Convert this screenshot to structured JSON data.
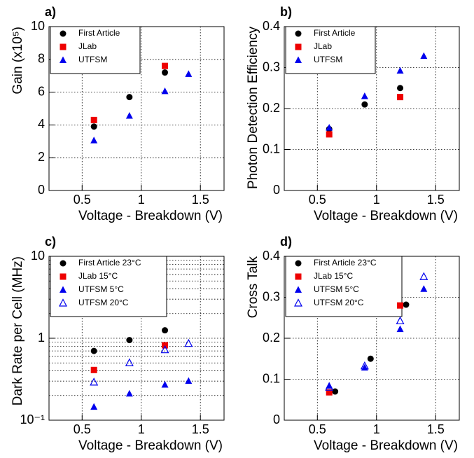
{
  "chart_data": [
    {
      "type": "scatter",
      "annotation": "a)",
      "xlabel": "Voltage - Breakdown (V)",
      "ylabel": "Gain (x10⁵)",
      "xlim": [
        0.22,
        1.7
      ],
      "xticks": [
        0.5,
        1,
        1.5
      ],
      "ylim": [
        0,
        10
      ],
      "yticks": [
        0,
        2,
        4,
        6,
        8,
        10
      ],
      "grid": true,
      "legend": "upper left",
      "series": [
        {
          "name": "First Article",
          "color": "#000000",
          "marker": "circle",
          "x": [
            0.6,
            0.9,
            1.2
          ],
          "values": [
            3.9,
            5.7,
            7.2
          ]
        },
        {
          "name": "JLab",
          "color": "#ee0000",
          "marker": "square",
          "x": [
            0.6,
            1.2
          ],
          "values": [
            4.3,
            7.6
          ]
        },
        {
          "name": "UTFSM",
          "color": "#0000ee",
          "marker": "triangle",
          "x": [
            0.6,
            0.9,
            1.2,
            1.4
          ],
          "values": [
            3.05,
            4.55,
            6.05,
            7.1
          ]
        }
      ]
    },
    {
      "type": "scatter",
      "annotation": "b)",
      "xlabel": "Voltage - Breakdown (V)",
      "ylabel": "Photon Detection Efficiency",
      "xlim": [
        0.22,
        1.7
      ],
      "xticks": [
        0.5,
        1,
        1.5
      ],
      "ylim": [
        0,
        0.4
      ],
      "yticks": [
        0,
        0.1,
        0.2,
        0.3,
        0.4
      ],
      "grid": true,
      "legend": "upper left",
      "series": [
        {
          "name": "First Article",
          "color": "#000000",
          "marker": "circle",
          "x": [
            0.6,
            0.9,
            1.2
          ],
          "values": [
            0.15,
            0.21,
            0.25
          ]
        },
        {
          "name": "JLab",
          "color": "#ee0000",
          "marker": "square",
          "x": [
            0.6,
            1.2
          ],
          "values": [
            0.137,
            0.228
          ]
        },
        {
          "name": "UTFSM",
          "color": "#0000ee",
          "marker": "triangle",
          "x": [
            0.6,
            0.9,
            1.2,
            1.4
          ],
          "values": [
            0.153,
            0.23,
            0.292,
            0.328
          ]
        }
      ]
    },
    {
      "type": "scatter",
      "annotation": "c)",
      "xlabel": "Voltage - Breakdown (V)",
      "ylabel": "Dark Rate per Cell (MHz)",
      "xlim": [
        0.22,
        1.7
      ],
      "xticks": [
        0.5,
        1,
        1.5
      ],
      "ylim": [
        0.1,
        10
      ],
      "log_y": true,
      "yticks": [
        {
          "value": 0.1,
          "label": "10⁻¹"
        },
        1,
        10
      ],
      "minor_yticks": [
        0.2,
        0.3,
        0.4,
        0.5,
        0.6,
        0.7,
        0.8,
        0.9,
        2,
        3,
        4,
        5,
        6,
        7,
        8,
        9
      ],
      "grid": true,
      "legend": "upper left",
      "series": [
        {
          "name": "First Article 23°C",
          "color": "#000000",
          "marker": "circle",
          "x": [
            0.6,
            0.9,
            1.2
          ],
          "values": [
            0.7,
            0.95,
            1.25
          ]
        },
        {
          "name": "JLab 15°C",
          "color": "#ee0000",
          "marker": "square",
          "x": [
            0.6,
            1.2
          ],
          "values": [
            0.41,
            0.82
          ]
        },
        {
          "name": "UTFSM 5°C",
          "color": "#0000ee",
          "marker": "triangle",
          "x": [
            0.6,
            0.9,
            1.2,
            1.4
          ],
          "values": [
            0.145,
            0.21,
            0.27,
            0.3
          ]
        },
        {
          "name": "UTFSM 20°C",
          "color": "#0000ee",
          "marker": "triangle-open",
          "x": [
            0.6,
            0.9,
            1.2,
            1.4
          ],
          "values": [
            0.29,
            0.5,
            0.72,
            0.86
          ]
        }
      ]
    },
    {
      "type": "scatter",
      "annotation": "d)",
      "xlabel": "Voltage - Breakdown (V)",
      "ylabel": "Cross Talk",
      "xlim": [
        0.22,
        1.7
      ],
      "xticks": [
        0.5,
        1,
        1.5
      ],
      "ylim": [
        0,
        0.4
      ],
      "yticks": [
        0,
        0.1,
        0.2,
        0.3,
        0.4
      ],
      "grid": true,
      "legend": "upper left",
      "series": [
        {
          "name": "First Article 23°C",
          "color": "#000000",
          "marker": "circle",
          "x": [
            0.65,
            0.95,
            1.25
          ],
          "values": [
            0.07,
            0.15,
            0.282
          ]
        },
        {
          "name": "JLab 15°C",
          "color": "#ee0000",
          "marker": "square",
          "x": [
            0.6,
            1.2
          ],
          "values": [
            0.068,
            0.28
          ]
        },
        {
          "name": "UTFSM 5°C",
          "color": "#0000ee",
          "marker": "triangle",
          "x": [
            0.6,
            0.9,
            1.2,
            1.4
          ],
          "values": [
            0.084,
            0.128,
            0.222,
            0.32
          ]
        },
        {
          "name": "UTFSM 20°C",
          "color": "#0000ee",
          "marker": "triangle-open",
          "x": [
            0.6,
            0.9,
            1.2,
            1.4
          ],
          "values": [
            0.08,
            0.132,
            0.242,
            0.35
          ]
        }
      ]
    }
  ]
}
